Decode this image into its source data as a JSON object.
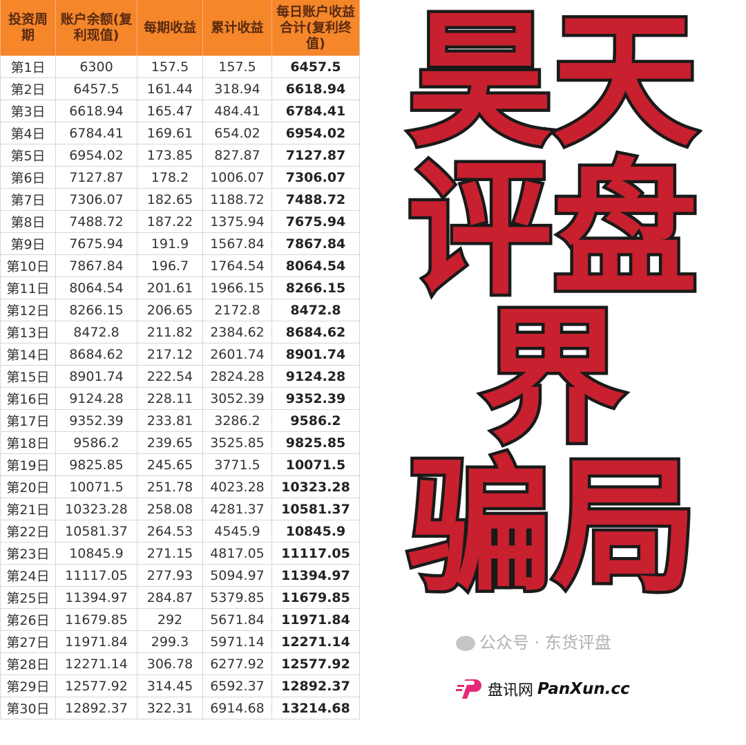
{
  "headers": [
    "投资周期",
    "账户余额(复利现值)",
    "每期收益",
    "累计收益",
    "每日账户收益合计(复利终值)"
  ],
  "rows": [
    [
      "第1日",
      "6300",
      "157.5",
      "157.5",
      "6457.5"
    ],
    [
      "第2日",
      "6457.5",
      "161.44",
      "318.94",
      "6618.94"
    ],
    [
      "第3日",
      "6618.94",
      "165.47",
      "484.41",
      "6784.41"
    ],
    [
      "第4日",
      "6784.41",
      "169.61",
      "654.02",
      "6954.02"
    ],
    [
      "第5日",
      "6954.02",
      "173.85",
      "827.87",
      "7127.87"
    ],
    [
      "第6日",
      "7127.87",
      "178.2",
      "1006.07",
      "7306.07"
    ],
    [
      "第7日",
      "7306.07",
      "182.65",
      "1188.72",
      "7488.72"
    ],
    [
      "第8日",
      "7488.72",
      "187.22",
      "1375.94",
      "7675.94"
    ],
    [
      "第9日",
      "7675.94",
      "191.9",
      "1567.84",
      "7867.84"
    ],
    [
      "第10日",
      "7867.84",
      "196.7",
      "1764.54",
      "8064.54"
    ],
    [
      "第11日",
      "8064.54",
      "201.61",
      "1966.15",
      "8266.15"
    ],
    [
      "第12日",
      "8266.15",
      "206.65",
      "2172.8",
      "8472.8"
    ],
    [
      "第13日",
      "8472.8",
      "211.82",
      "2384.62",
      "8684.62"
    ],
    [
      "第14日",
      "8684.62",
      "217.12",
      "2601.74",
      "8901.74"
    ],
    [
      "第15日",
      "8901.74",
      "222.54",
      "2824.28",
      "9124.28"
    ],
    [
      "第16日",
      "9124.28",
      "228.11",
      "3052.39",
      "9352.39"
    ],
    [
      "第17日",
      "9352.39",
      "233.81",
      "3286.2",
      "9586.2"
    ],
    [
      "第18日",
      "9586.2",
      "239.65",
      "3525.85",
      "9825.85"
    ],
    [
      "第19日",
      "9825.85",
      "245.65",
      "3771.5",
      "10071.5"
    ],
    [
      "第20日",
      "10071.5",
      "251.78",
      "4023.28",
      "10323.28"
    ],
    [
      "第21日",
      "10323.28",
      "258.08",
      "4281.37",
      "10581.37"
    ],
    [
      "第22日",
      "10581.37",
      "264.53",
      "4545.9",
      "10845.9"
    ],
    [
      "第23日",
      "10845.9",
      "271.15",
      "4817.05",
      "11117.05"
    ],
    [
      "第24日",
      "11117.05",
      "277.93",
      "5094.97",
      "11394.97"
    ],
    [
      "第25日",
      "11394.97",
      "284.87",
      "5379.85",
      "11679.85"
    ],
    [
      "第26日",
      "11679.85",
      "292",
      "5671.84",
      "11971.84"
    ],
    [
      "第27日",
      "11971.84",
      "299.3",
      "5971.14",
      "12271.14"
    ],
    [
      "第28日",
      "12271.14",
      "306.78",
      "6277.92",
      "12577.92"
    ],
    [
      "第29日",
      "12577.92",
      "314.45",
      "6592.37",
      "12892.37"
    ],
    [
      "第30日",
      "12892.37",
      "322.31",
      "6914.68",
      "13214.68"
    ]
  ],
  "overlay": {
    "line1": "昊天评盘界",
    "line2": "骗局"
  },
  "watermark": {
    "text": "公众号 · 东货评盘",
    "icon": "wechat-icon"
  },
  "logo": {
    "cn": "盘讯网",
    "en": "PanXun.cc",
    "icon": "panxun-p-logo"
  },
  "colors": {
    "header": "#f5862a",
    "overlay": "#c8202e",
    "logo": "#e8287a"
  }
}
